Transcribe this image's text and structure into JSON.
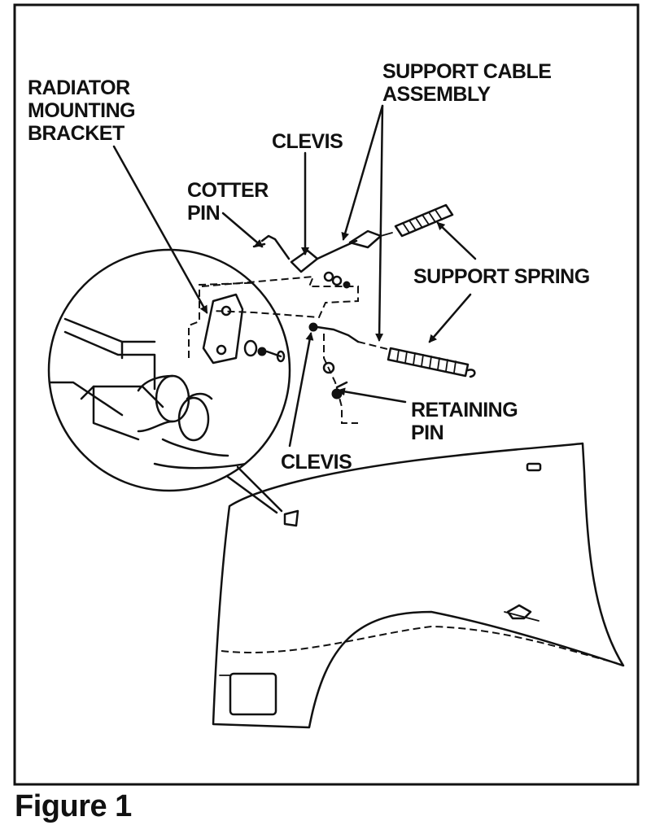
{
  "labels": {
    "radiator_bracket": [
      "RADIATOR",
      "MOUNTING",
      "BRACKET"
    ],
    "support_cable": [
      "SUPPORT CABLE",
      "ASSEMBLY"
    ],
    "clevis_top": "CLEVIS",
    "cotter_pin": [
      "COTTER",
      "PIN"
    ],
    "support_spring": "SUPPORT SPRING",
    "retaining_pin": [
      "RETAINING",
      "PIN"
    ],
    "clevis_bottom": "CLEVIS"
  },
  "caption": "Figure 1"
}
